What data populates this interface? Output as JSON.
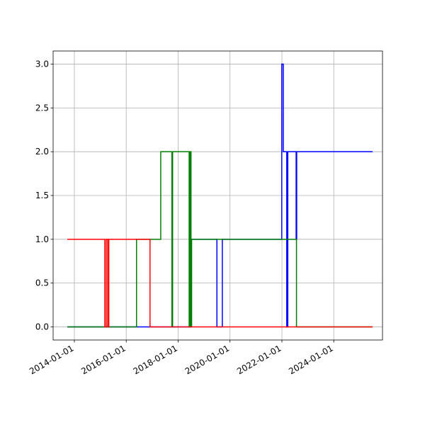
{
  "chart_data": {
    "type": "line",
    "step": "post",
    "grid": true,
    "xlim": [
      "2013-03-08",
      "2025-11-17"
    ],
    "xticks": [
      "2014-01-01",
      "2016-01-01",
      "2018-01-01",
      "2020-01-01",
      "2022-01-01",
      "2024-01-01"
    ],
    "ylim": [
      -0.15,
      3.15
    ],
    "yticks": [
      {
        "value": 0,
        "label": "0.0"
      },
      0.5,
      {
        "value": 1,
        "label": "1.0"
      },
      1.5,
      {
        "value": 2,
        "label": "2.0"
      },
      2.5,
      {
        "value": 3,
        "label": "3.0"
      }
    ],
    "series": [
      {
        "color": "#0000ff",
        "x": [
          "2013-09-25",
          "2018-06-10",
          "2018-06-25",
          "2018-07-05",
          "2019-07-01",
          "2019-09-15",
          "2021-12-30",
          "2022-01-20",
          "2022-03-10",
          "2022-03-25",
          "2022-07-20",
          "2022-07-28",
          "2025-07-01"
        ],
        "values": [
          0,
          1,
          0,
          1,
          0,
          1,
          3,
          2,
          0,
          2,
          1,
          2,
          2
        ]
      },
      {
        "color": "#008000",
        "x": [
          "2013-09-25",
          "2016-05-25",
          "2017-05-01",
          "2017-10-05",
          "2017-10-15",
          "2018-06-05",
          "2018-06-20",
          "2018-07-01",
          "2018-07-10",
          "2022-07-25",
          "2025-07-01"
        ],
        "values": [
          0,
          1,
          2,
          0,
          2,
          0,
          2,
          0,
          1,
          0,
          0
        ]
      },
      {
        "color": "#ff0000",
        "x": [
          "2013-09-25",
          "2015-03-05",
          "2015-03-25",
          "2015-04-15",
          "2015-05-01",
          "2016-12-01",
          "2025-07-01"
        ],
        "values": [
          1,
          0,
          1,
          0,
          1,
          0,
          0
        ]
      }
    ]
  }
}
